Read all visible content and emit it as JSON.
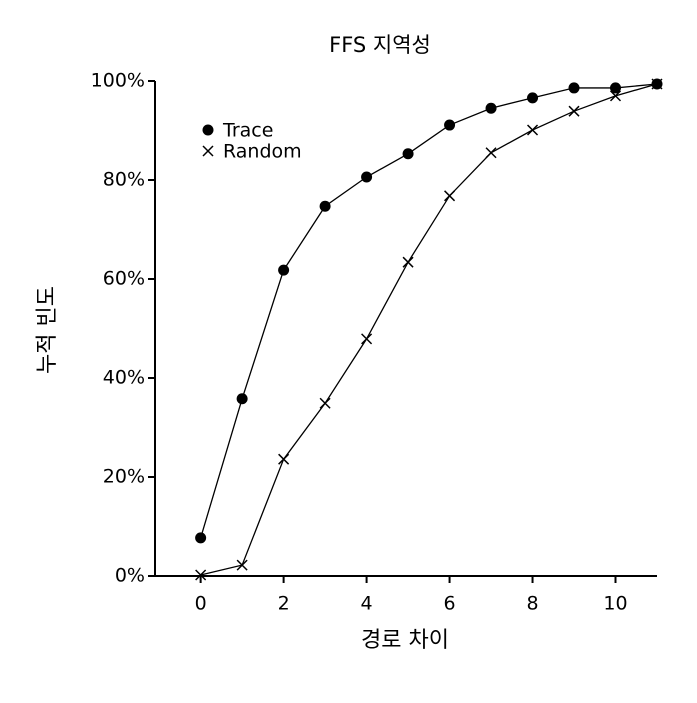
{
  "chart_data": {
    "type": "line",
    "title": "FFS 지역성",
    "x_label": "경로 차이",
    "y_label": "누적 빈도",
    "x": [
      0,
      1,
      2,
      3,
      4,
      5,
      6,
      7,
      8,
      9,
      10,
      11
    ],
    "series": [
      {
        "name": "Trace",
        "color": "#000000",
        "marker": "circle",
        "values": [
          7.7,
          35.8,
          61.8,
          74.7,
          80.6,
          85.3,
          91.1,
          94.5,
          96.6,
          98.6,
          98.6,
          99.4
        ]
      },
      {
        "name": "Random",
        "color": "#000000",
        "marker": "x",
        "values": [
          0.2,
          2.2,
          23.6,
          34.9,
          47.9,
          63.4,
          76.8,
          85.5,
          90.1,
          93.9,
          97.0,
          99.4
        ]
      }
    ],
    "xlim": [
      -1.1,
      11
    ],
    "xticks": [
      0,
      2,
      4,
      6,
      8,
      10
    ],
    "ylim": [
      0,
      100
    ],
    "yticks": [
      {
        "value": 0,
        "label": "0%"
      },
      {
        "value": 20,
        "label": "20%"
      },
      {
        "value": 40,
        "label": "40%"
      },
      {
        "value": 60,
        "label": "60%"
      },
      {
        "value": 80,
        "label": "80%"
      },
      {
        "value": 100,
        "label": "100%"
      }
    ],
    "grid": false,
    "legend": "upper left"
  }
}
